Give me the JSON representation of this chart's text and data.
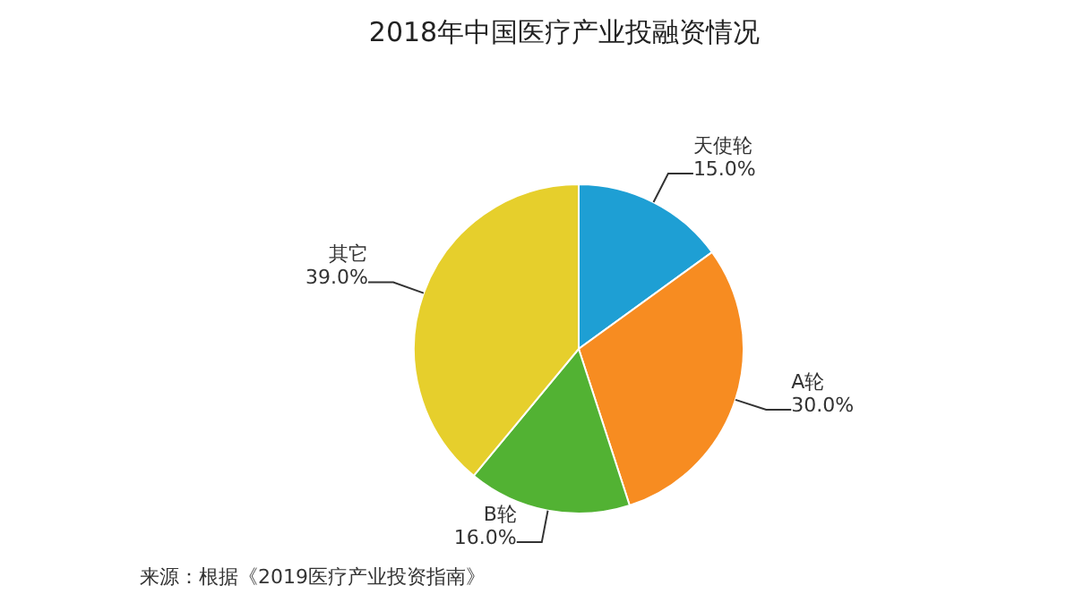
{
  "chart_data": {
    "type": "pie",
    "title": "2018年中国医疗产业投融资情况",
    "categories": [
      "天使轮",
      "A轮",
      "B轮",
      "其它"
    ],
    "values": [
      15.0,
      30.0,
      16.0,
      39.0
    ],
    "value_labels": [
      "15.0%",
      "30.0%",
      "16.0%",
      "39.0%"
    ],
    "colors": [
      "#1e9fd4",
      "#f78c21",
      "#52b233",
      "#e6cf2c"
    ],
    "annotations": [
      "来源：根据《2019医疗产业投资指南》"
    ],
    "legend": false
  }
}
